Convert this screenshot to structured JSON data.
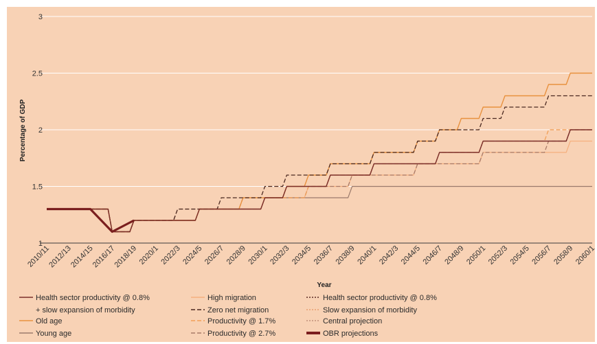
{
  "chart_data": {
    "type": "line",
    "title": "",
    "xlabel": "Year",
    "ylabel": "Percentage of GDP",
    "ylim": [
      1,
      3
    ],
    "yticks": [
      "1",
      "1.5",
      "2",
      "2.5",
      "3"
    ],
    "categories": [
      "2010/11",
      "2012/13",
      "2014/15",
      "2016/17",
      "2018/19",
      "2020/1",
      "2022/3",
      "2024/5",
      "2026/7",
      "2028/9",
      "2030/1",
      "2032/3",
      "2034/5",
      "2036/7",
      "2038/9",
      "2040/1",
      "2042/3",
      "2044/5",
      "2046/7",
      "2048/9",
      "2050/1",
      "2052/3",
      "2054/5",
      "2056/7",
      "2058/9",
      "2060/1"
    ],
    "grid": true,
    "series": [
      {
        "name": "Health sector productivity @ 0.8% + slow expansion of morbidity",
        "color": "#7a2e2a",
        "dash": "solid",
        "width": 1.4,
        "values": [
          1.3,
          1.3,
          1.3,
          1.1,
          1.2,
          1.2,
          1.2,
          1.3,
          1.3,
          1.3,
          1.4,
          1.5,
          1.5,
          1.6,
          1.6,
          1.7,
          1.7,
          1.7,
          1.8,
          1.8,
          1.9,
          1.9,
          1.9,
          1.9,
          2.0,
          2.0
        ]
      },
      {
        "name": "Old age",
        "color": "#e8913e",
        "dash": "solid",
        "width": 1.4,
        "values": [
          1.3,
          1.3,
          1.3,
          1.1,
          1.2,
          1.2,
          1.2,
          1.3,
          1.3,
          1.4,
          1.4,
          1.5,
          1.6,
          1.7,
          1.7,
          1.8,
          1.8,
          1.9,
          2.0,
          2.1,
          2.2,
          2.3,
          2.3,
          2.4,
          2.5,
          2.5
        ]
      },
      {
        "name": "Young age",
        "color": "#9b7a6c",
        "dash": "solid",
        "width": 1.2,
        "values": [
          1.3,
          1.3,
          1.3,
          1.1,
          1.2,
          1.2,
          1.2,
          1.3,
          1.3,
          1.3,
          1.4,
          1.4,
          1.4,
          1.4,
          1.5,
          1.5,
          1.5,
          1.5,
          1.5,
          1.5,
          1.5,
          1.5,
          1.5,
          1.5,
          1.5,
          1.5
        ]
      },
      {
        "name": "High migration",
        "color": "#f5b07e",
        "dash": "solid",
        "width": 1.2,
        "values": [
          1.3,
          1.3,
          1.3,
          1.1,
          1.2,
          1.2,
          1.2,
          1.3,
          1.3,
          1.3,
          1.4,
          1.4,
          1.5,
          1.5,
          1.6,
          1.6,
          1.6,
          1.7,
          1.7,
          1.7,
          1.8,
          1.8,
          1.8,
          1.8,
          1.9,
          1.9
        ]
      },
      {
        "name": "Zero net migration",
        "color": "#4a2820",
        "dash": "6,3",
        "width": 1.3,
        "values": [
          1.3,
          1.3,
          1.3,
          1.1,
          1.2,
          1.2,
          1.3,
          1.3,
          1.4,
          1.4,
          1.5,
          1.6,
          1.6,
          1.7,
          1.7,
          1.8,
          1.8,
          1.9,
          2.0,
          2.0,
          2.1,
          2.2,
          2.2,
          2.3,
          2.3,
          2.3
        ]
      },
      {
        "name": "Productivity @ 1.7%",
        "color": "#f2a058",
        "dash": "6,3",
        "width": 1.3,
        "values": [
          1.3,
          1.3,
          1.3,
          1.1,
          1.2,
          1.2,
          1.2,
          1.3,
          1.3,
          1.3,
          1.4,
          1.4,
          1.5,
          1.6,
          1.6,
          1.7,
          1.7,
          1.7,
          1.8,
          1.8,
          1.9,
          1.9,
          1.9,
          2.0,
          2.0,
          2.0
        ]
      },
      {
        "name": "Productivity @ 2.7%",
        "color": "#a87a68",
        "dash": "6,3",
        "width": 1.3,
        "values": [
          1.3,
          1.3,
          1.3,
          1.1,
          1.2,
          1.2,
          1.3,
          1.3,
          1.3,
          1.4,
          1.4,
          1.4,
          1.5,
          1.5,
          1.6,
          1.6,
          1.6,
          1.7,
          1.7,
          1.7,
          1.8,
          1.8,
          1.8,
          1.9,
          2.0,
          2.0
        ]
      },
      {
        "name": "Health sector productivity @ 0.8%",
        "color": "#5a2a24",
        "dash": "2,2",
        "width": 1.1,
        "values": [
          1.3,
          1.3,
          1.3,
          1.1,
          1.2,
          1.2,
          1.2,
          1.3,
          1.3,
          1.3,
          1.4,
          1.5,
          1.5,
          1.6,
          1.6,
          1.7,
          1.7,
          1.7,
          1.8,
          1.8,
          1.9,
          1.9,
          1.9,
          1.9,
          2.0,
          2.0
        ]
      },
      {
        "name": "Slow expansion of morbidity",
        "color": "#e8a070",
        "dash": "2,2",
        "width": 1.1,
        "values": [
          1.3,
          1.3,
          1.3,
          1.1,
          1.2,
          1.2,
          1.2,
          1.3,
          1.3,
          1.3,
          1.4,
          1.5,
          1.5,
          1.6,
          1.6,
          1.7,
          1.7,
          1.7,
          1.8,
          1.8,
          1.9,
          1.9,
          1.9,
          1.9,
          2.0,
          2.0
        ]
      },
      {
        "name": "Central projection",
        "color": "#c0907a",
        "dash": "2,2",
        "width": 1.1,
        "values": [
          1.3,
          1.3,
          1.3,
          1.1,
          1.2,
          1.2,
          1.2,
          1.3,
          1.3,
          1.3,
          1.4,
          1.5,
          1.5,
          1.6,
          1.6,
          1.7,
          1.7,
          1.7,
          1.8,
          1.8,
          1.9,
          1.9,
          1.9,
          1.9,
          2.0,
          2.0
        ]
      },
      {
        "name": "OBR projections",
        "color": "#7a1e1e",
        "dash": "solid",
        "width": 3.2,
        "values": [
          1.3,
          1.3,
          1.3,
          1.1,
          1.2,
          null,
          null,
          null,
          null,
          null,
          null,
          null,
          null,
          null,
          null,
          null,
          null,
          null,
          null,
          null,
          null,
          null,
          null,
          null,
          null,
          null
        ]
      }
    ],
    "legend": {
      "placement": "bottom",
      "columns": [
        [
          {
            "series": 0,
            "lines": [
              "Health sector productivity @ 0.8%",
              "+ slow expansion of morbidity"
            ]
          },
          {
            "series": 1,
            "lines": [
              "Old age"
            ]
          },
          {
            "series": 2,
            "lines": [
              "Young age"
            ]
          }
        ],
        [
          {
            "series": 3,
            "lines": [
              "High migration"
            ]
          },
          {
            "series": 4,
            "lines": [
              "Zero net migration"
            ]
          },
          {
            "series": 5,
            "lines": [
              "Productivity @ 1.7%"
            ]
          },
          {
            "series": 6,
            "lines": [
              "Productivity @ 2.7%"
            ]
          }
        ],
        [
          {
            "series": 7,
            "lines": [
              "Health sector productivity @ 0.8%"
            ]
          },
          {
            "series": 8,
            "lines": [
              "Slow expansion of morbidity"
            ]
          },
          {
            "series": 9,
            "lines": [
              "Central projection"
            ]
          },
          {
            "series": 10,
            "lines": [
              "OBR projections"
            ]
          }
        ]
      ]
    }
  }
}
